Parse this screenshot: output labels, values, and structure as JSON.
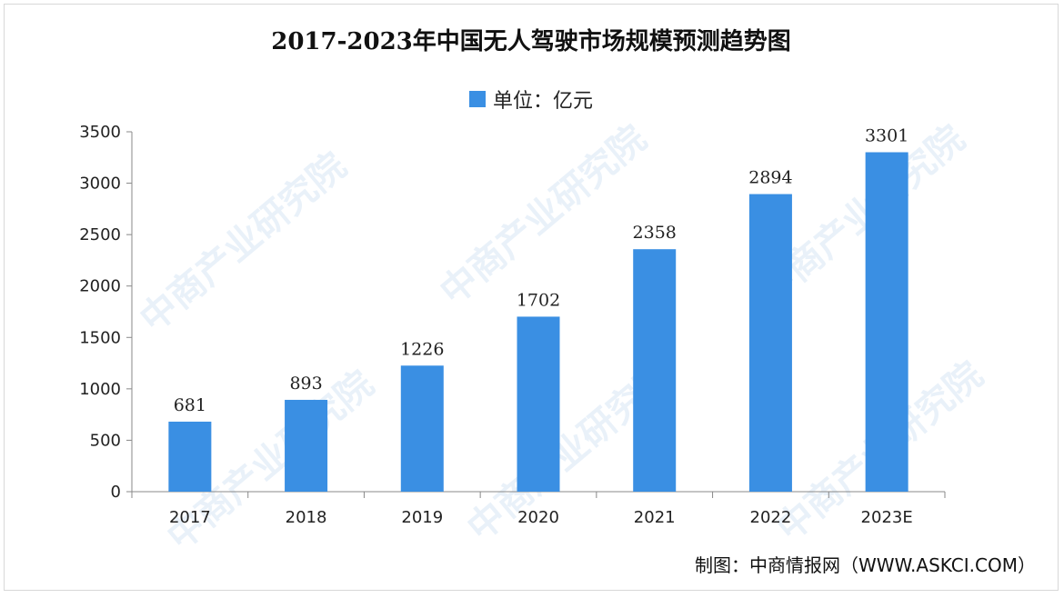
{
  "chart_data": {
    "type": "bar",
    "title": "2017-2023年中国无人驾驶市场规模预测趋势图",
    "legend": "单位：亿元",
    "legend_position": "top-center",
    "categories": [
      "2017",
      "2018",
      "2019",
      "2020",
      "2021",
      "2022",
      "2023E"
    ],
    "series": [
      {
        "name": "单位：亿元",
        "values": [
          681,
          893,
          1226,
          1702,
          2358,
          2894,
          3301
        ]
      }
    ],
    "ylim": [
      0,
      3500
    ],
    "yticks": [
      "0",
      "500",
      "1000",
      "1500",
      "2000",
      "2500",
      "3000",
      "3500"
    ],
    "grid": false,
    "bar_color": "#3a8fe3"
  },
  "source": "制图：中商情报网（WWW.ASKCI.COM）",
  "watermark": "中商产业研究院"
}
